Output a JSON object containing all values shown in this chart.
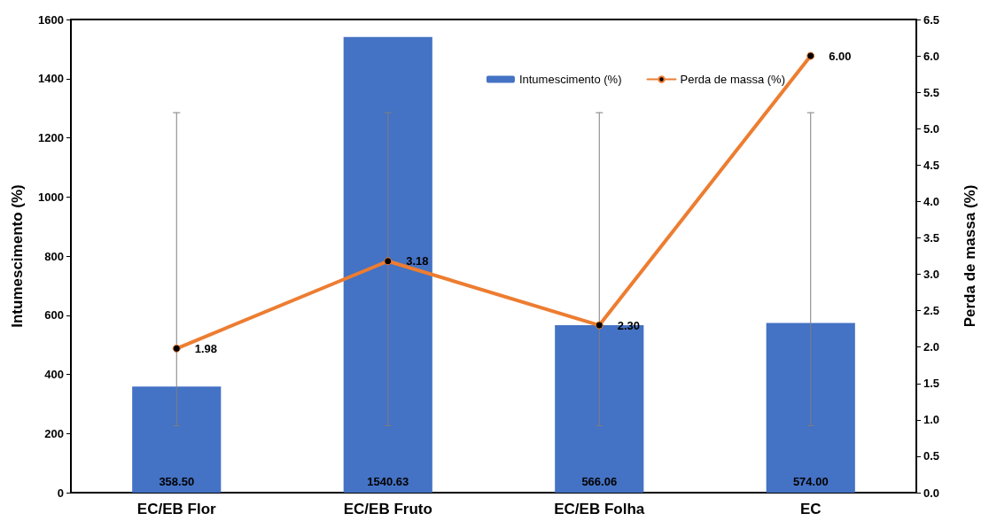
{
  "chart_data": {
    "type": "bar",
    "categories": [
      "EC/EB Flor",
      "EC/EB Fruto",
      "EC/EB Folha",
      "EC"
    ],
    "series": [
      {
        "name": "Intumescimento (%)",
        "color": "#4472c4",
        "values": [
          358.5,
          1540.63,
          566.06,
          574.0
        ],
        "value_labels": [
          "358.50",
          "1540.63",
          "566.06",
          "574.00"
        ]
      },
      {
        "name": "Perda de massa (%)",
        "type": "line",
        "axis": "y2",
        "color": "#ed7d31",
        "values": [
          1.98,
          3.18,
          2.3,
          6.0
        ],
        "value_labels": [
          "1.98",
          "3.18",
          "2.30",
          "6.00"
        ],
        "errors": [
          [
            0.92,
            5.22
          ],
          [
            0.92,
            5.22
          ],
          [
            0.92,
            5.22
          ],
          [
            0.92,
            5.22
          ]
        ]
      }
    ],
    "ylabel": "Intumescimento (%)",
    "y2label": "Perda de massa (%)",
    "ylim": [
      0,
      1600
    ],
    "yticks": [
      0,
      200,
      400,
      600,
      800,
      1000,
      1200,
      1400,
      1600
    ],
    "y2lim": [
      0,
      6.5
    ],
    "y2ticks": [
      {
        "value": 0,
        "label": "0.0"
      },
      0.5,
      {
        "value": 1,
        "label": "1.0"
      },
      1.5,
      {
        "value": 2,
        "label": "2.0"
      },
      2.5,
      {
        "value": 3,
        "label": "3.0"
      },
      3.5,
      {
        "value": 4,
        "label": "4.0"
      },
      4.5,
      {
        "value": 5,
        "label": "5.0"
      },
      5.5,
      {
        "value": 6,
        "label": "6.0"
      },
      6.5
    ],
    "grid": false,
    "legend": "top right",
    "marker": "circle",
    "line_style": "solid"
  }
}
